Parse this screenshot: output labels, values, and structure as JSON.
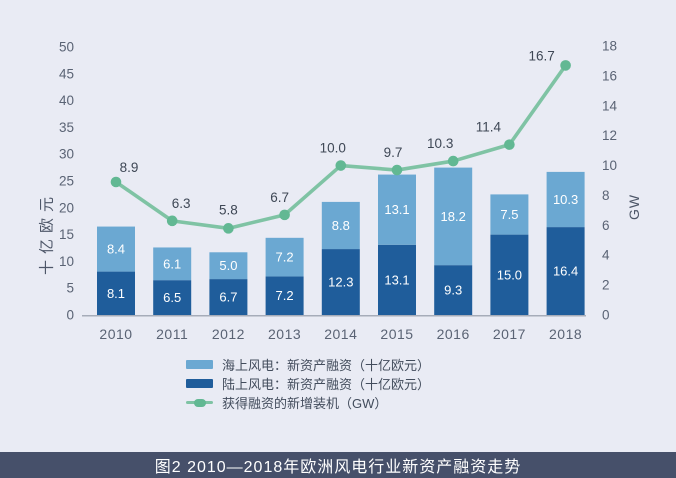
{
  "caption": {
    "text": "图2 2010—2018年欧洲风电行业新资产融资走势",
    "background": "#46506a",
    "color": "#ffffff"
  },
  "page": {
    "background": "#e9ebf4"
  },
  "chart_data": {
    "type": "bar",
    "subtype": "stacked-bars-with-line-overlay",
    "title": "图2 2010—2018年欧洲风电行业新资产融资走势",
    "categories": [
      "2010",
      "2011",
      "2012",
      "2013",
      "2014",
      "2015",
      "2016",
      "2017",
      "2018"
    ],
    "series": [
      {
        "name": "海上风电：新资产融资（十亿欧元）",
        "type": "bar",
        "stack": "top",
        "axis": "left",
        "color": "#6ba8d2",
        "values": [
          8.4,
          6.1,
          5.0,
          7.2,
          8.8,
          13.1,
          18.2,
          7.5,
          10.3
        ]
      },
      {
        "name": "陆上风电：新资产融资（十亿欧元）",
        "type": "bar",
        "stack": "bottom",
        "axis": "left",
        "color": "#1f5d9b",
        "values": [
          8.1,
          6.5,
          6.7,
          7.2,
          12.3,
          13.1,
          9.3,
          15.0,
          16.4
        ]
      },
      {
        "name": "获得融资的新增装机（GW）",
        "type": "line",
        "axis": "right",
        "color": "#7fc3a4",
        "marker_color": "#62b893",
        "values": [
          8.9,
          6.3,
          5.8,
          6.7,
          10.0,
          9.7,
          10.3,
          11.4,
          16.7
        ]
      }
    ],
    "left_axis": {
      "label": "十亿欧元",
      "min": 0,
      "max": 50,
      "step": 5
    },
    "right_axis": {
      "label": "GW",
      "min": 0,
      "max": 18,
      "step": 2
    },
    "legend_position": "bottom",
    "grid": false,
    "value_label_format": "one-decimal",
    "text_color": "#5a6374",
    "value_text_color": "#3e4755"
  }
}
